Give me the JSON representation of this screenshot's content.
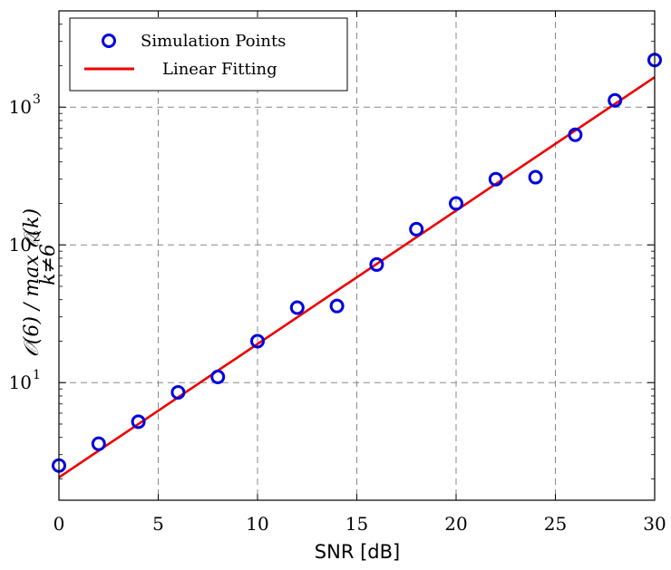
{
  "chart_data": {
    "type": "scatter",
    "xlabel": "SNR [dB]",
    "ylabel": "𝒪(6) / max 𝒪(k)",
    "ylabel_sub": "k≠6",
    "x_ticks": [
      "0",
      "5",
      "10",
      "15",
      "20",
      "25",
      "30"
    ],
    "y_ticks": [
      {
        "base": "10",
        "exp": "1",
        "value": 10
      },
      {
        "base": "10",
        "exp": "2",
        "value": 100
      },
      {
        "base": "10",
        "exp": "3",
        "value": 1000
      }
    ],
    "xlim": [
      0,
      30
    ],
    "ylim": [
      1.4,
      5000
    ],
    "y_scale": "log",
    "grid": true,
    "legend_position": "top-left",
    "series": [
      {
        "name": "Simulation Points",
        "style": "markers",
        "color": "#0000dd",
        "x": [
          0,
          2,
          4,
          6,
          8,
          10,
          12,
          14,
          16,
          18,
          20,
          22,
          24,
          26,
          28,
          30
        ],
        "y": [
          2.5,
          3.6,
          5.2,
          8.5,
          11,
          20,
          35,
          36,
          72,
          130,
          200,
          300,
          310,
          630,
          1120,
          2200
        ]
      },
      {
        "name": "Linear Fitting",
        "style": "line",
        "color": "#ee0000",
        "x": [
          0,
          30
        ],
        "y": [
          2.05,
          1650
        ]
      }
    ]
  }
}
